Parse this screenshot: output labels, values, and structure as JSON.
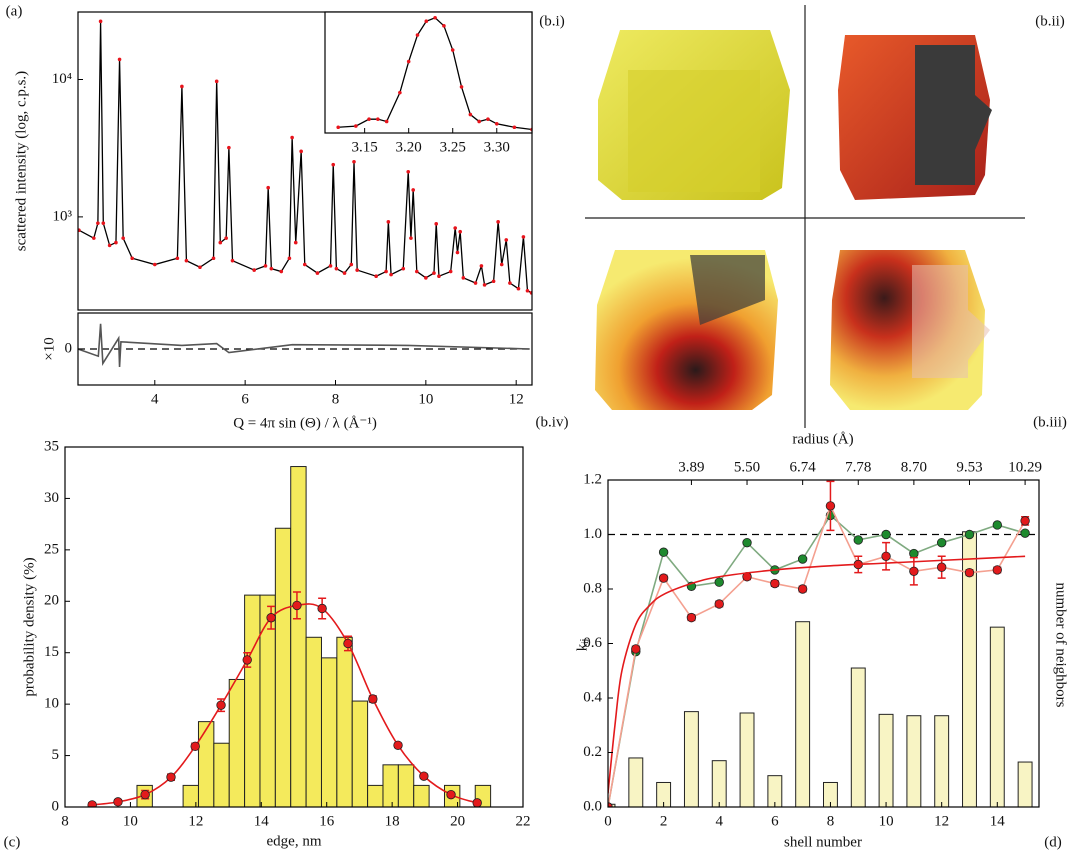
{
  "chart_data": [
    {
      "type": "line",
      "panel_label": "(a)",
      "y_label": "scattered intensity (log, c.p.s.)",
      "log_y": true,
      "xlim": [
        2.3,
        12.35
      ],
      "ylim": [
        210,
        31000
      ],
      "yticks": [
        {
          "value": 1000,
          "label": "10³"
        },
        {
          "value": 10000,
          "label": "10⁴"
        }
      ],
      "series": [
        {
          "color": "#e8141c",
          "line_color": "#000000",
          "x": [
            2.32,
            2.65,
            2.74,
            2.8,
            2.86,
            3.0,
            3.14,
            3.22,
            3.3,
            3.5,
            4.0,
            4.5,
            4.6,
            4.7,
            5.0,
            5.3,
            5.37,
            5.45,
            5.58,
            5.64,
            5.72,
            6.2,
            6.45,
            6.51,
            6.58,
            6.8,
            6.98,
            7.04,
            7.12,
            7.24,
            7.32,
            7.6,
            7.89,
            7.95,
            8.02,
            8.2,
            8.35,
            8.41,
            8.48,
            8.9,
            9.12,
            9.17,
            9.23,
            9.5,
            9.61,
            9.67,
            9.72,
            9.8,
            10.0,
            10.18,
            10.23,
            10.29,
            10.55,
            10.65,
            10.7,
            10.76,
            10.83,
            11.1,
            11.23,
            11.3,
            11.5,
            11.6,
            11.68,
            11.78,
            11.86,
            12.05,
            12.16,
            12.25,
            12.34
          ],
          "values": [
            800,
            700,
            900,
            26500,
            900,
            620,
            650,
            14000,
            700,
            500,
            450,
            500,
            8900,
            480,
            430,
            500,
            9700,
            650,
            700,
            3190,
            480,
            410,
            440,
            1630,
            420,
            400,
            500,
            3780,
            650,
            3000,
            450,
            390,
            440,
            2400,
            420,
            390,
            450,
            2520,
            410,
            370,
            400,
            920,
            380,
            420,
            2130,
            700,
            1570,
            400,
            360,
            390,
            890,
            370,
            400,
            830,
            550,
            780,
            360,
            330,
            440,
            320,
            340,
            920,
            450,
            680,
            330,
            300,
            715,
            290,
            280
          ]
        }
      ]
    },
    {
      "type": "line",
      "y_label": "×10",
      "x_label": "Q = 4π sin (Θ) / λ (Å⁻¹)",
      "xlim": [
        2.3,
        12.35
      ],
      "ylim": [
        -1,
        1
      ],
      "yticks": [
        0
      ],
      "xticks": [
        4,
        6,
        8,
        10,
        12
      ],
      "reference_y": 0,
      "series": [
        {
          "line_color": "#555555",
          "x": [
            2.3,
            2.75,
            2.8,
            2.85,
            3.2,
            3.22,
            3.25,
            4.6,
            5.37,
            5.64,
            7.04,
            9.61,
            12.3
          ],
          "values": [
            0,
            -0.2,
            0.7,
            -0.4,
            0.3,
            -0.5,
            0.2,
            0.1,
            0.15,
            -0.1,
            0.12,
            0.1,
            0
          ]
        }
      ]
    },
    {
      "type": "line",
      "xlim": [
        3.105,
        3.34
      ],
      "ylim": [
        0,
        1.05
      ],
      "xticks": [
        3.15,
        {
          "value": 3.2,
          "label": "3.20"
        },
        3.25,
        {
          "value": 3.3,
          "label": "3.30"
        }
      ],
      "series": [
        {
          "color": "#e8141c",
          "line_color": "#000000",
          "x": [
            3.12,
            3.14,
            3.155,
            3.165,
            3.175,
            3.19,
            3.2,
            3.21,
            3.22,
            3.23,
            3.24,
            3.25,
            3.26,
            3.27,
            3.28,
            3.29,
            3.3,
            3.32,
            3.34
          ],
          "values": [
            0.05,
            0.06,
            0.12,
            0.12,
            0.1,
            0.35,
            0.62,
            0.85,
            0.97,
            1.0,
            0.93,
            0.72,
            0.4,
            0.16,
            0.1,
            0.12,
            0.08,
            0.05,
            0.03
          ]
        }
      ]
    },
    {
      "type": "histogram",
      "panel_label": "(c)",
      "x_label": "edge, nm",
      "y_label": "probability density (%)",
      "xlim": [
        8,
        22
      ],
      "ylim": [
        0,
        35
      ],
      "xticks": [
        8,
        10,
        12,
        14,
        16,
        18,
        20,
        22
      ],
      "yticks": [
        0,
        5,
        10,
        15,
        20,
        25,
        30,
        35
      ],
      "color": "#f4ea5c",
      "bins": [
        10.2,
        10.67,
        11.14,
        11.61,
        12.08,
        12.55,
        13.02,
        13.49,
        13.96,
        14.43,
        14.9,
        15.37,
        15.84,
        16.31,
        16.78,
        17.25,
        17.72,
        18.19,
        18.66,
        19.13,
        19.6,
        20.07,
        20.54,
        21.01
      ],
      "counts": [
        2.1,
        0,
        0,
        2.1,
        8.3,
        6.2,
        12.4,
        20.6,
        20.6,
        27.1,
        33.1,
        16.5,
        14.5,
        16.5,
        10.3,
        2.1,
        4.1,
        4.1,
        2.1,
        0,
        2.1,
        0,
        2.1
      ],
      "series": [
        {
          "color": "#e31a1c",
          "line_color": "#e31a1c",
          "smooth": true,
          "x": [
            8.83,
            9.62,
            10.45,
            11.24,
            11.98,
            12.77,
            13.57,
            14.3,
            15.09,
            15.86,
            16.65,
            17.41,
            18.18,
            18.97,
            19.8,
            20.6
          ],
          "values": [
            0.2,
            0.5,
            1.2,
            2.9,
            5.9,
            9.9,
            14.3,
            18.4,
            19.6,
            19.3,
            15.9,
            10.5,
            6.0,
            3.0,
            1.2,
            0.4
          ],
          "errors": [
            0.2,
            0.2,
            0.4,
            0.3,
            0.3,
            0.6,
            0.7,
            1.1,
            1.3,
            1.0,
            0.7,
            0.3,
            0.2,
            0.2,
            0.2,
            0.2
          ]
        }
      ]
    },
    {
      "type": "bar",
      "panel_label": "(d)",
      "x_label": "shell number",
      "y_label": "kᵢⱼ",
      "y2_label": "number of neighbors",
      "x2_label": "radius (Å)",
      "xlim": [
        0,
        15.5
      ],
      "ylim": [
        0,
        1.2
      ],
      "y2lim": [
        0,
        1.2
      ],
      "reference_y": 1,
      "xticks": [
        0,
        2,
        4,
        6,
        8,
        10,
        12,
        14
      ],
      "yticks": [
        {
          "value": 0,
          "label": "0.0"
        },
        0.2,
        0.4,
        0.6,
        0.8,
        {
          "value": 1,
          "label": "1.0"
        },
        1.2
      ],
      "x2ticks": [
        {
          "value": 3,
          "label": "3.89"
        },
        {
          "value": 5,
          "label": "5.50"
        },
        {
          "value": 7,
          "label": "6.74"
        },
        {
          "value": 9,
          "label": "7.78"
        },
        {
          "value": 11,
          "label": "8.70"
        },
        {
          "value": 13,
          "label": "9.53"
        },
        {
          "value": 15,
          "label": "10.29"
        }
      ],
      "x": [
        0,
        1,
        2,
        3,
        4,
        5,
        6,
        7,
        8,
        9,
        10,
        11,
        12,
        13,
        14,
        15
      ],
      "series": [
        {
          "axis": "y2",
          "color": "#f8f4c4",
          "values": [
            0.01,
            0.18,
            0.09,
            0.35,
            0.17,
            0.345,
            0.115,
            0.68,
            0.09,
            0.51,
            0.34,
            0.335,
            0.335,
            1.01,
            0.66,
            0.165
          ]
        },
        {
          "color": "#1e8a2e",
          "line_color": "#7faa80",
          "values": [
            0,
            0.57,
            0.935,
            0.81,
            0.825,
            0.97,
            0.87,
            0.91,
            1.07,
            0.98,
            1.0,
            0.93,
            0.97,
            1.0,
            1.035,
            1.005
          ]
        },
        {
          "color": "#e31a1c",
          "line_color": "#f4a090",
          "values": [
            0,
            0.58,
            0.84,
            0.695,
            0.745,
            0.845,
            0.82,
            0.8,
            1.105,
            0.89,
            0.92,
            0.865,
            0.88,
            0.86,
            0.87,
            1.05
          ],
          "errors": [
            0,
            0.01,
            0.01,
            0.01,
            0.01,
            0.01,
            0.01,
            0.01,
            0.09,
            0.03,
            0.05,
            0.05,
            0.04,
            0.01,
            0.01,
            0.015
          ]
        },
        {
          "line_color": "#e31a1c",
          "smooth": true,
          "x": [
            0,
            0.25,
            0.5,
            1,
            1.5,
            2,
            3,
            4,
            6,
            8,
            10,
            12,
            15
          ],
          "values": [
            0.05,
            0.3,
            0.5,
            0.67,
            0.74,
            0.78,
            0.82,
            0.845,
            0.87,
            0.885,
            0.895,
            0.905,
            0.92
          ]
        }
      ]
    }
  ],
  "panel_b": {
    "labels": [
      "(b.i)",
      "(b.ii)",
      "(b.iii)",
      "(b.iv)"
    ]
  }
}
